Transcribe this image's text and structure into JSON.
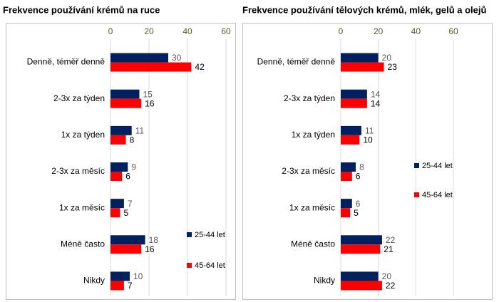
{
  "chart_data": [
    {
      "type": "bar",
      "orientation": "horizontal",
      "title": "Frekvence používání krémů na ruce",
      "categories": [
        "Denně, téměř denně",
        "2-3x za týden",
        "1x za týden",
        "2-3x za měsíc",
        "1x za měsíc",
        "Méně často",
        "Nikdy"
      ],
      "series": [
        {
          "name": "25-44 let",
          "color": "#002060",
          "values": [
            30,
            15,
            11,
            9,
            7,
            18,
            10
          ]
        },
        {
          "name": "45-64 let",
          "color": "#ff0000",
          "values": [
            42,
            16,
            8,
            6,
            5,
            16,
            7
          ]
        }
      ],
      "xlim": [
        0,
        60
      ],
      "xticks": [
        0,
        20,
        40,
        60
      ],
      "grid": true,
      "legend": "lower right"
    },
    {
      "type": "bar",
      "orientation": "horizontal",
      "title": "Frekvence používání tělových krémů, mlék, gelů a olejů",
      "categories": [
        "Denně, téměř denně",
        "2-3x za týden",
        "1x za týden",
        "2-3x za měsíc",
        "1x za měsíc",
        "Méně často",
        "Nikdy"
      ],
      "series": [
        {
          "name": "25-44 let",
          "color": "#002060",
          "values": [
            20,
            14,
            11,
            8,
            6,
            22,
            20
          ]
        },
        {
          "name": "45-64 let",
          "color": "#ff0000",
          "values": [
            23,
            14,
            10,
            6,
            5,
            21,
            22
          ]
        }
      ],
      "xlim": [
        0,
        60
      ],
      "xticks": [
        0,
        20,
        40,
        60
      ],
      "grid": true,
      "legend": "center right"
    }
  ]
}
